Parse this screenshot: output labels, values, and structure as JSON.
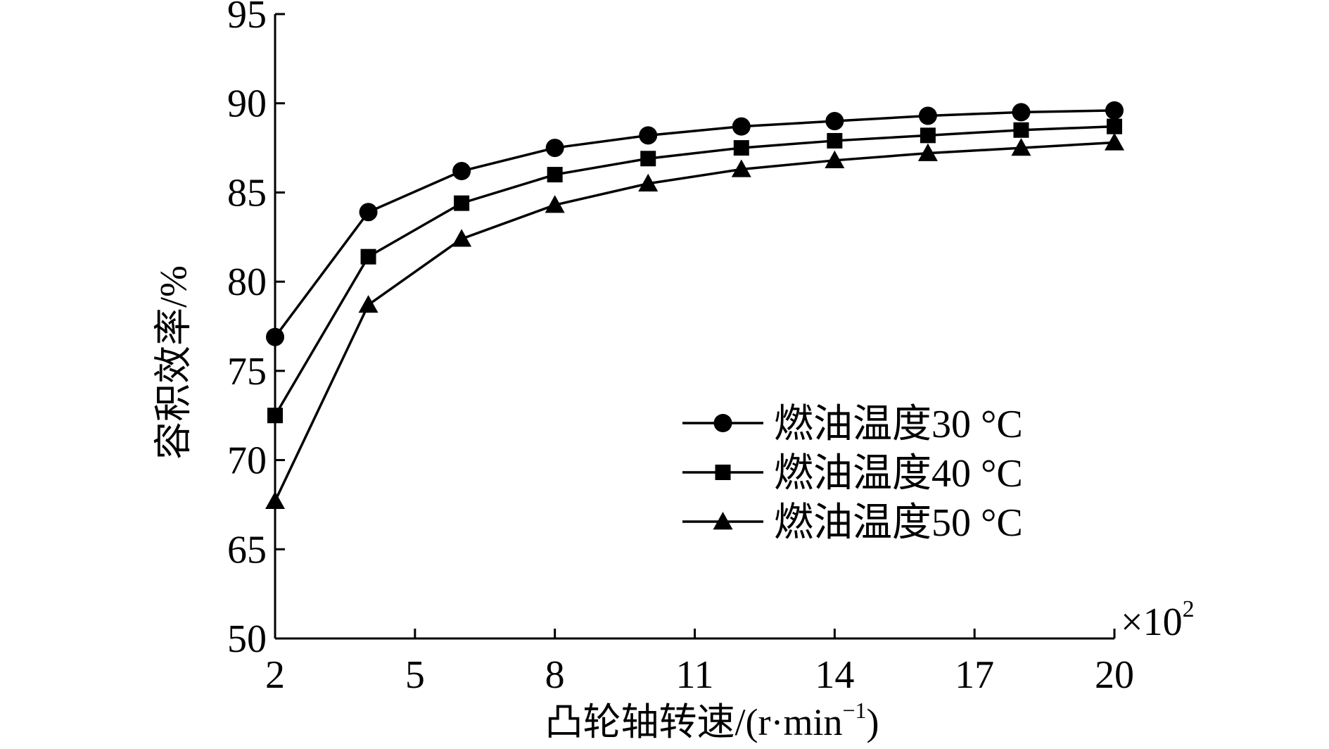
{
  "chart_data": {
    "type": "line",
    "title": "",
    "xlabel": "凸轮轴转速/(r·min",
    "xlabel_sup": "−1",
    "xlabel_close": ")",
    "x_multiplier_base": "×10",
    "x_multiplier_exp": "2",
    "ylabel": "容积效率/%",
    "x": [
      2,
      4,
      6,
      8,
      10,
      12,
      14,
      16,
      18,
      20
    ],
    "x_ticks": [
      2,
      5,
      8,
      11,
      14,
      17,
      20
    ],
    "xlim": [
      2,
      20
    ],
    "y_ticks": [
      50,
      65,
      70,
      75,
      80,
      85,
      90,
      95
    ],
    "y_ticks_labels": [
      "50",
      "65",
      "70",
      "75",
      "80",
      "85",
      "90",
      "95"
    ],
    "x_ticks_labels": [
      "2",
      "5",
      "8",
      "11",
      "14",
      "17",
      "20"
    ],
    "ylim_display": [
      60,
      95
    ],
    "y_axis_break_note": "bottom tick labeled 50 sits where 60 would be",
    "grid": false,
    "legend_position": "lower-right",
    "series": [
      {
        "name": "燃油温度30 °C",
        "marker": "circle",
        "values": [
          76.9,
          83.9,
          86.2,
          87.5,
          88.2,
          88.7,
          89.0,
          89.3,
          89.5,
          89.6
        ]
      },
      {
        "name": "燃油温度40 °C",
        "marker": "square",
        "values": [
          72.5,
          81.4,
          84.4,
          86.0,
          86.9,
          87.5,
          87.9,
          88.2,
          88.5,
          88.7
        ]
      },
      {
        "name": "燃油温度50 °C",
        "marker": "triangle",
        "values": [
          67.7,
          78.7,
          82.4,
          84.3,
          85.5,
          86.3,
          86.8,
          87.2,
          87.5,
          87.8
        ]
      }
    ]
  }
}
